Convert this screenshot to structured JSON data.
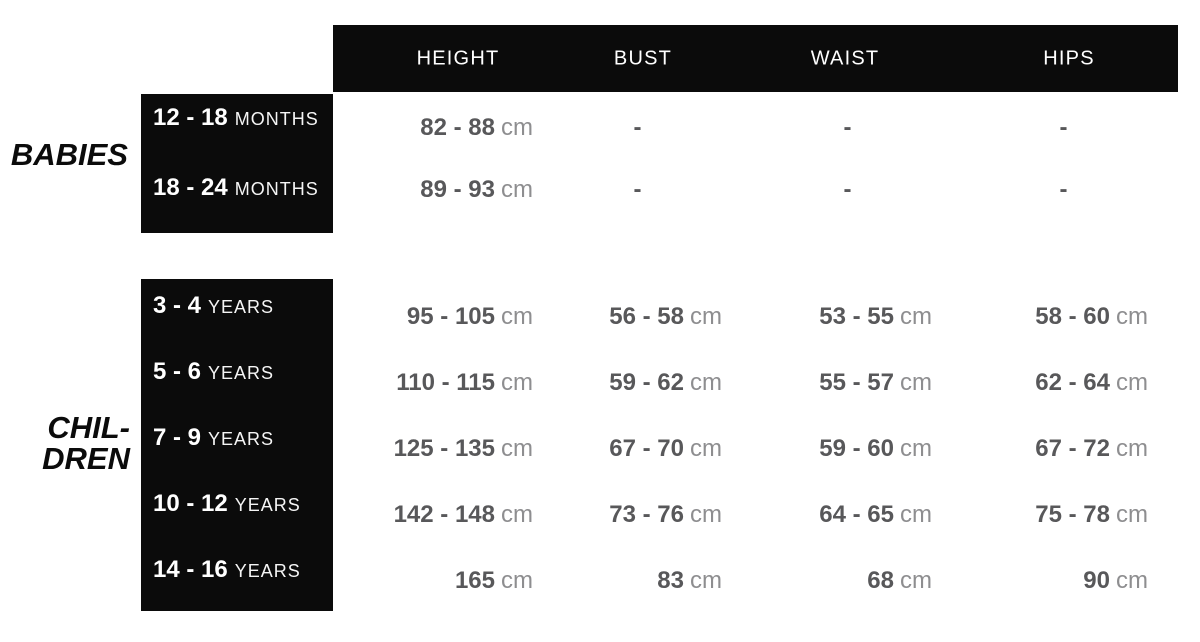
{
  "chart_data": {
    "type": "table",
    "title": "",
    "column_headers": [
      "HEIGHT",
      "BUST",
      "WAIST",
      "HIPS"
    ],
    "groups": [
      {
        "label": "BABIES",
        "rows": [
          {
            "age": "12 - 18",
            "age_unit": "MONTHS",
            "height": {
              "v": "82 - 88",
              "u": "cm"
            },
            "bust": {
              "v": "-",
              "u": ""
            },
            "waist": {
              "v": "-",
              "u": ""
            },
            "hips": {
              "v": "-",
              "u": ""
            }
          },
          {
            "age": "18 - 24",
            "age_unit": "MONTHS",
            "height": {
              "v": "89 - 93",
              "u": "cm"
            },
            "bust": {
              "v": "-",
              "u": ""
            },
            "waist": {
              "v": "-",
              "u": ""
            },
            "hips": {
              "v": "-",
              "u": ""
            }
          }
        ]
      },
      {
        "label_lines": [
          "CHIL-",
          "DREN"
        ],
        "rows": [
          {
            "age": "3 - 4",
            "age_unit": "YEARS",
            "height": {
              "v": "95 - 105",
              "u": "cm"
            },
            "bust": {
              "v": "56 - 58",
              "u": "cm"
            },
            "waist": {
              "v": "53 - 55",
              "u": "cm"
            },
            "hips": {
              "v": "58 - 60",
              "u": "cm"
            }
          },
          {
            "age": "5 - 6",
            "age_unit": "YEARS",
            "height": {
              "v": "110 - 115",
              "u": "cm"
            },
            "bust": {
              "v": "59 - 62",
              "u": "cm"
            },
            "waist": {
              "v": "55 - 57",
              "u": "cm"
            },
            "hips": {
              "v": "62 - 64",
              "u": "cm"
            }
          },
          {
            "age": "7 - 9",
            "age_unit": "YEARS",
            "height": {
              "v": "125 - 135",
              "u": "cm"
            },
            "bust": {
              "v": "67 - 70",
              "u": "cm"
            },
            "waist": {
              "v": "59 - 60",
              "u": "cm"
            },
            "hips": {
              "v": "67 - 72",
              "u": "cm"
            }
          },
          {
            "age": "10 - 12",
            "age_unit": "YEARS",
            "height": {
              "v": "142 - 148",
              "u": "cm"
            },
            "bust": {
              "v": "73 - 76",
              "u": "cm"
            },
            "waist": {
              "v": "64 - 65",
              "u": "cm"
            },
            "hips": {
              "v": "75 - 78",
              "u": "cm"
            }
          },
          {
            "age": "14 - 16",
            "age_unit": "YEARS",
            "height": {
              "v": "165",
              "u": "cm"
            },
            "bust": {
              "v": "83",
              "u": "cm"
            },
            "waist": {
              "v": "68",
              "u": "cm"
            },
            "hips": {
              "v": "90",
              "u": "cm"
            }
          }
        ]
      }
    ]
  },
  "colors": {
    "box_black": "#0b0b0b",
    "value_gray": "#58585a",
    "unit_gray": "#8e8e90",
    "header_text": "#ffffff"
  }
}
